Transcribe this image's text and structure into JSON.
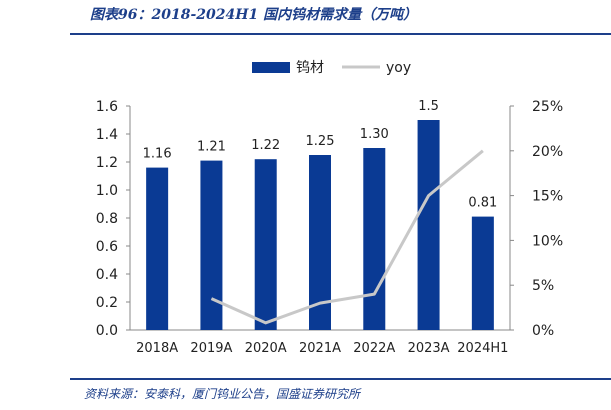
{
  "header": {
    "title": "图表96：2018-2024H1 国内钨材需求量（万吨）"
  },
  "footer": {
    "source": "资料来源：安泰科，厦门钨业公告，国盛证券研究所"
  },
  "colors": {
    "bar": "#0a3a94",
    "line": "#c8c8c8",
    "rule": "#1d3f8a"
  },
  "chart_data": {
    "type": "bar",
    "title": "2018-2024H1 国内钨材需求量（万吨）",
    "categories": [
      "2018A",
      "2019A",
      "2020A",
      "2021A",
      "2022A",
      "2023A",
      "2024H1"
    ],
    "series": [
      {
        "name": "钨材",
        "type": "bar",
        "axis": "left",
        "values": [
          1.16,
          1.21,
          1.22,
          1.25,
          1.3,
          1.5,
          0.81
        ],
        "labels": [
          "1.16",
          "1.21",
          "1.22",
          "1.25",
          "1.30",
          "1.5",
          "0.81"
        ]
      },
      {
        "name": "yoy",
        "type": "line",
        "axis": "right",
        "values": [
          null,
          3.5,
          0.8,
          3.0,
          4.0,
          15.0,
          20.0
        ]
      }
    ],
    "y_left": {
      "min": 0,
      "max": 1.6,
      "ticks": [
        "0.0",
        "0.2",
        "0.4",
        "0.6",
        "0.8",
        "1.0",
        "1.2",
        "1.4",
        "1.6"
      ]
    },
    "y_right": {
      "min": 0,
      "max": 25,
      "unit": "%",
      "ticks": [
        "0%",
        "5%",
        "10%",
        "15%",
        "20%",
        "25%"
      ]
    },
    "legend_position": "top",
    "grid": false
  }
}
